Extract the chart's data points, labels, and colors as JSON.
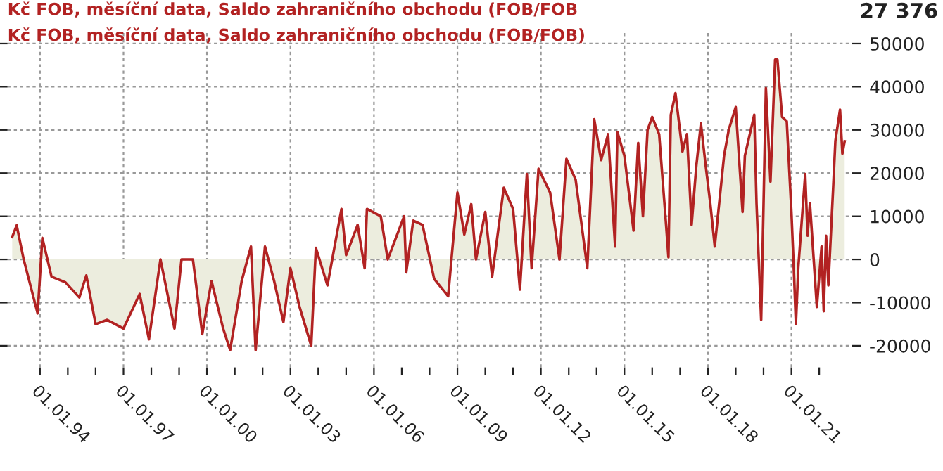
{
  "chart_data": {
    "type": "area",
    "title": "Kč FOB, měsíční data, Saldo zahraničního obchodu (FOB/FOB",
    "subtitle": "Kč FOB, měsíční data, Saldo zahraničního obchodu (FOB/FOB)",
    "annotations": [
      "27 376"
    ],
    "x": [
      "1993-01",
      "1993-03",
      "1993-06",
      "1993-12",
      "1994-02",
      "1994-06",
      "1994-12",
      "1995-06",
      "1995-09",
      "1996-01",
      "1996-06",
      "1997-01",
      "1997-08",
      "1997-12",
      "1998-05",
      "1998-11",
      "1999-02",
      "1999-07",
      "1999-11",
      "2000-03",
      "2000-08",
      "2000-11",
      "2001-04",
      "2001-08",
      "2001-10",
      "2002-02",
      "2002-06",
      "2002-10",
      "2003-01",
      "2003-05",
      "2003-10",
      "2003-12",
      "2004-05",
      "2004-11",
      "2005-01",
      "2005-06",
      "2005-09",
      "2005-10",
      "2006-04",
      "2006-07",
      "2007-02",
      "2007-03",
      "2007-06",
      "2007-10",
      "2008-03",
      "2008-09",
      "2009-01",
      "2009-04",
      "2009-07",
      "2009-09",
      "2010-01",
      "2010-04",
      "2010-09",
      "2011-01",
      "2011-04",
      "2011-07",
      "2011-09",
      "2011-12",
      "2012-05",
      "2012-09",
      "2012-12",
      "2013-04",
      "2013-09",
      "2013-12",
      "2014-03",
      "2014-06",
      "2014-09",
      "2014-10",
      "2015-01",
      "2015-05",
      "2015-07",
      "2015-09",
      "2015-11",
      "2016-01",
      "2016-04",
      "2016-07",
      "2016-08",
      "2016-09",
      "2016-11",
      "2017-02",
      "2017-04",
      "2017-06",
      "2017-08",
      "2017-10",
      "2017-12",
      "2018-02",
      "2018-04",
      "2018-08",
      "2018-10",
      "2019-01",
      "2019-04",
      "2019-05",
      "2019-09",
      "2019-10",
      "2019-12",
      "2020-02",
      "2020-04",
      "2020-06",
      "2020-07",
      "2020-09",
      "2020-11",
      "2021-01",
      "2021-02",
      "2021-03",
      "2021-04",
      "2021-07",
      "2021-08",
      "2021-09",
      "2021-12",
      "2022-02",
      "2022-03",
      "2022-04",
      "2022-05",
      "2022-07",
      "2022-08",
      "2022-10",
      "2022-11",
      "2022-12"
    ],
    "series": [
      {
        "color": "#b22222",
        "values": [
          5200,
          7900,
          0,
          -12500,
          5000,
          -4000,
          -5300,
          -8800,
          -3700,
          -15000,
          -14000,
          -16000,
          -8000,
          -18500,
          0,
          -16000,
          0,
          0,
          -17300,
          -5000,
          -16000,
          -21000,
          -5000,
          3000,
          -21000,
          3000,
          -5000,
          -14500,
          -2000,
          -11000,
          -20000,
          2700,
          -6000,
          11700,
          1000,
          8000,
          -2000,
          11700,
          10000,
          0,
          10000,
          -3000,
          9000,
          8000,
          -4500,
          -8500,
          15500,
          5800,
          12800,
          0,
          11000,
          -4000,
          16600,
          11700,
          -7000,
          19800,
          -2000,
          21000,
          15500,
          0,
          23300,
          18500,
          -2000,
          32500,
          23000,
          29000,
          3000,
          29500,
          24000,
          6700,
          27000,
          10000,
          30000,
          33000,
          29000,
          8000,
          500,
          33500,
          38500,
          25000,
          29000,
          8000,
          21500,
          31500,
          22000,
          13000,
          3000,
          24000,
          30000,
          35300,
          11000,
          24000,
          33500,
          13000,
          -14000,
          39700,
          18000,
          46300,
          46300,
          33000,
          32000,
          11000,
          -2000,
          -15000,
          -2000,
          19800,
          5500,
          13000,
          -11000,
          3000,
          -12000,
          5500,
          -6000,
          16000,
          27500,
          34700,
          24500,
          27376
        ]
      }
    ],
    "xlim": [
      "1992-11",
      "2023-03"
    ],
    "xticks": [
      {
        "value": "1994-01-01",
        "label": "01.01.94"
      },
      {
        "value": "1995-01-01",
        "label": null
      },
      {
        "value": "1996-01-01",
        "label": null
      },
      {
        "value": "1997-01-01",
        "label": "01.01.97"
      },
      {
        "value": "1998-01-01",
        "label": null
      },
      {
        "value": "1999-01-01",
        "label": null
      },
      {
        "value": "2000-01-01",
        "label": "01.01.00"
      },
      {
        "value": "2001-01-01",
        "label": null
      },
      {
        "value": "2002-01-01",
        "label": null
      },
      {
        "value": "2003-01-01",
        "label": "01.01.03"
      },
      {
        "value": "2004-01-01",
        "label": null
      },
      {
        "value": "2005-01-01",
        "label": null
      },
      {
        "value": "2006-01-01",
        "label": "01.01.06"
      },
      {
        "value": "2007-01-01",
        "label": null
      },
      {
        "value": "2008-01-01",
        "label": null
      },
      {
        "value": "2009-01-01",
        "label": "01.01.09"
      },
      {
        "value": "2010-01-01",
        "label": null
      },
      {
        "value": "2011-01-01",
        "label": null
      },
      {
        "value": "2012-01-01",
        "label": "01.01.12"
      },
      {
        "value": "2013-01-01",
        "label": null
      },
      {
        "value": "2014-01-01",
        "label": null
      },
      {
        "value": "2015-01-01",
        "label": "01.01.15"
      },
      {
        "value": "2016-01-01",
        "label": null
      },
      {
        "value": "2017-01-01",
        "label": null
      },
      {
        "value": "2018-01-01",
        "label": "01.01.18"
      },
      {
        "value": "2019-01-01",
        "label": null
      },
      {
        "value": "2020-01-01",
        "label": null
      },
      {
        "value": "2021-01-01",
        "label": "01.01.21"
      },
      {
        "value": "2022-01-01",
        "label": null
      }
    ],
    "ylim": [
      -25000,
      53000
    ],
    "yticks": [
      -20000,
      -10000,
      0,
      10000,
      20000,
      30000,
      40000,
      50000
    ],
    "grid": true
  }
}
